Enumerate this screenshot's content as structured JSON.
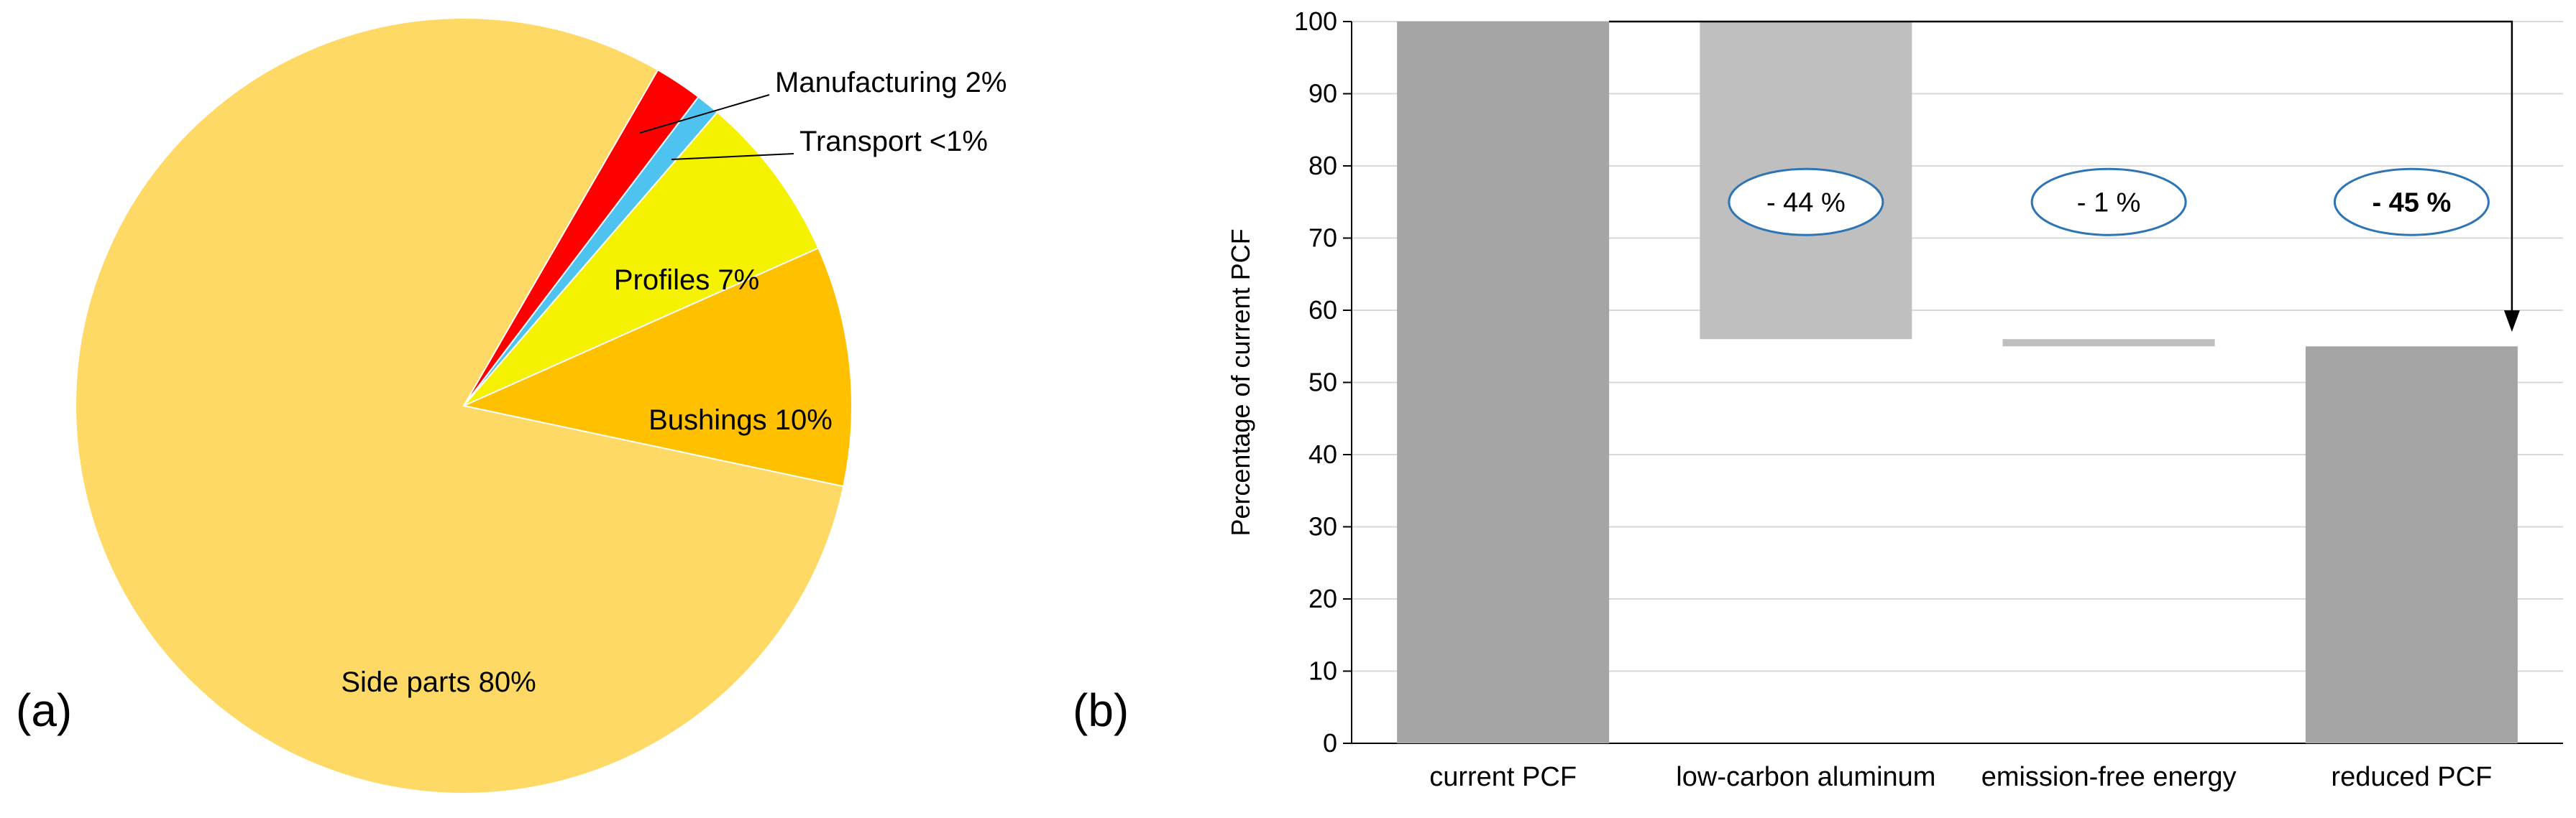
{
  "panels": {
    "a_label": "(a)",
    "b_label": "(b)"
  },
  "chart_data": [
    {
      "type": "pie",
      "panel": "a",
      "start_angle_deg": 30,
      "slices": [
        {
          "label": "Manufacturing 2%",
          "value": 2,
          "color": "#FF0000",
          "label_placement": "outside"
        },
        {
          "label": "Transport <1%",
          "value": 1,
          "color": "#4FC3F0",
          "label_placement": "outside"
        },
        {
          "label": "Profiles 7%",
          "value": 7,
          "color": "#F5F200",
          "label_placement": "inside"
        },
        {
          "label": "Bushings 10%",
          "value": 10,
          "color": "#FFC000",
          "label_placement": "inside"
        },
        {
          "label": "Side parts 80%",
          "value": 80,
          "color": "#FFD966",
          "label_placement": "inside"
        }
      ]
    },
    {
      "type": "waterfall",
      "panel": "b",
      "ylabel": "Percentage of current PCF",
      "ylim": [
        0,
        100
      ],
      "ytick_step": 10,
      "grid": true,
      "categories": [
        "current PCF",
        "low-carbon aluminum",
        "emission-free energy",
        "reduced PCF"
      ],
      "bars": [
        {
          "category": "current PCF",
          "from": 0,
          "to": 100,
          "color": "#A5A5A5"
        },
        {
          "category": "low-carbon aluminum",
          "from": 56,
          "to": 100,
          "color": "#BFBFBF"
        },
        {
          "category": "emission-free energy",
          "from": 55,
          "to": 56,
          "color": "#BFBFBF"
        },
        {
          "category": "reduced PCF",
          "from": 0,
          "to": 55,
          "color": "#A5A5A5"
        }
      ],
      "annotations": [
        {
          "text": "- 44 %",
          "bold": false,
          "category_index": 1,
          "y": 75
        },
        {
          "text": "- 1 %",
          "bold": false,
          "category_index": 2,
          "y": 75
        },
        {
          "text": "- 45 %",
          "bold": true,
          "category_index": 3,
          "y": 75
        }
      ],
      "annotation_style": {
        "stroke": "#2E75B6",
        "fill": "#FFFFFF"
      },
      "arrow": {
        "from": {
          "category_index": 0,
          "y": 100
        },
        "to": {
          "category_index": 3,
          "y": 57
        },
        "color": "#000000"
      },
      "colors": {
        "gridline": "#D9D9D9",
        "axis": "#000000"
      }
    }
  ]
}
